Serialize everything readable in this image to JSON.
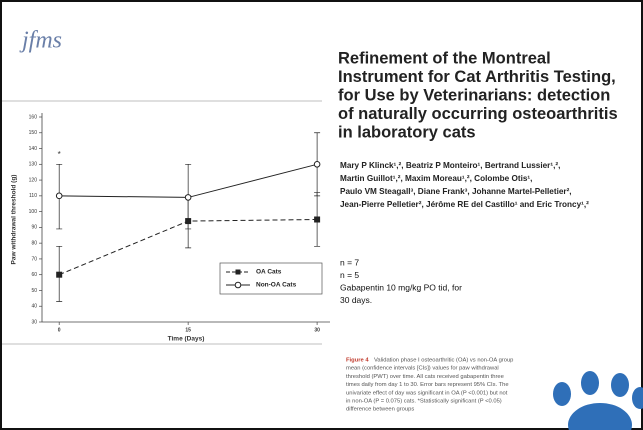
{
  "logo": "jfms",
  "chart_data": {
    "type": "line",
    "y_label": "Paw withdrawal threshold (g)",
    "x_label": "Time (Days)",
    "x": [
      0,
      15,
      30
    ],
    "xlim": [
      -2,
      31.5
    ],
    "xticks": [
      0,
      15,
      30
    ],
    "ylim": [
      30,
      160
    ],
    "yticks": [
      30,
      40,
      50,
      60,
      70,
      80,
      90,
      100,
      110,
      120,
      130,
      140,
      150,
      160
    ],
    "legend": "lower right",
    "series": [
      {
        "name": "OA Cats",
        "color": "#222222",
        "style": "dashed",
        "marker": "square",
        "values": [
          60,
          94,
          95
        ],
        "ci_low": [
          43,
          77,
          78
        ],
        "ci_high": [
          78,
          110,
          112
        ]
      },
      {
        "name": "Non-OA Cats",
        "color": "#222222",
        "style": "solid",
        "marker": "circle",
        "values": [
          110,
          109,
          130
        ],
        "ci_low": [
          89,
          89,
          110
        ],
        "ci_high": [
          130,
          130,
          150
        ]
      }
    ],
    "annotations": [
      {
        "text": "*",
        "x": 0,
        "y": 136
      }
    ]
  },
  "paper": {
    "title": [
      "Refinement of the Montreal",
      "Instrument for Cat Arthritis Testing,",
      "for Use by Veterinarians: detection",
      "of naturally occurring osteoarthritis",
      "in laboratory cats"
    ],
    "authors": [
      "Mary P Klinck¹,², Beatriz P Monteiro¹, Bertrand Lussier¹,²,",
      "Martin Guillot¹,², Maxim Moreau¹,², Colombe Otis¹,",
      "Paulo VM Steagall³, Diane Frank³, Johanne Martel-Pelletier²,",
      "Jean-Pierre Pelletier², Jérôme RE del Castillo¹ and Eric Troncy¹,²"
    ]
  },
  "notes": [
    "n = 7",
    "n = 5",
    "Gabapentin 10 mg/kg PO tid, for",
    "30 days."
  ],
  "caption": {
    "label": "Figure 4",
    "lines": [
      "Validation phase I osteoarthritic (OA) vs non-OA group",
      "mean (confidence intervals [CIs]) values for paw withdrawal",
      "threshold (PWT) over time. All cats received gabapentin three",
      "times daily from day 1 to 30. Error bars represent 95% CIs. The",
      "univariate effect of day was significant in OA (P <0.001) but not",
      "in non-OA (P = 0.075) cats. *Statistically significant (P <0.05)",
      "difference between groups"
    ]
  }
}
